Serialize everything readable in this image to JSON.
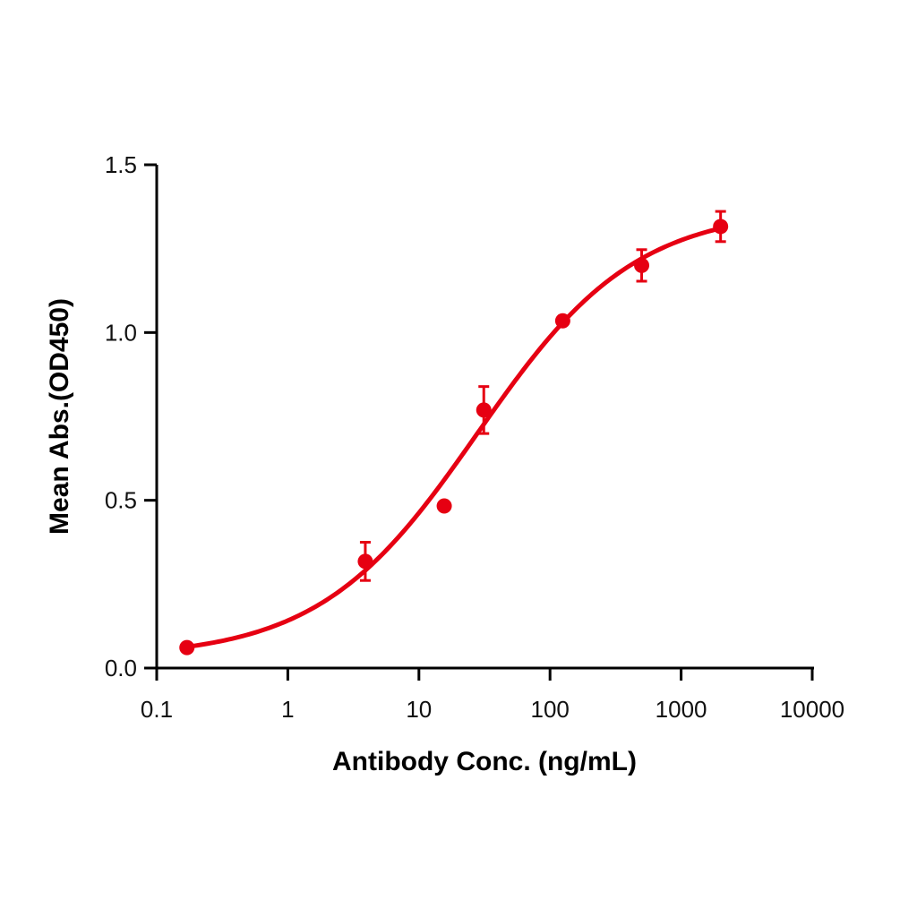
{
  "chart_data": {
    "type": "scatter",
    "title": "",
    "xlabel": "Antibody Conc. (ng/mL)",
    "ylabel": "Mean Abs.(OD450)",
    "xscale": "log",
    "xlim": [
      0.1,
      10000
    ],
    "ylim": [
      0.0,
      1.5
    ],
    "x_ticks": [
      "0.1",
      "1",
      "10",
      "100",
      "1000",
      "10000"
    ],
    "y_ticks": [
      "0.0",
      "0.5",
      "1.0",
      "1.5"
    ],
    "grid": false,
    "legend": null,
    "series": [
      {
        "name": "Mean Abs.(OD450)",
        "color": "#e60012",
        "marker": "circle",
        "x": [
          0.17,
          3.9,
          15.6,
          31.25,
          125,
          500,
          2000
        ],
        "y": [
          0.061,
          0.318,
          0.483,
          0.769,
          1.035,
          1.2,
          1.316
        ],
        "error": [
          0.0,
          0.057,
          0.0,
          0.07,
          0.0,
          0.047,
          0.045
        ]
      }
    ],
    "fit_curve": {
      "type": "4PL sigmoid",
      "color": "#e60012",
      "bottom": 0.03,
      "top": 1.37,
      "ec50": 28,
      "hill": 0.72
    }
  }
}
